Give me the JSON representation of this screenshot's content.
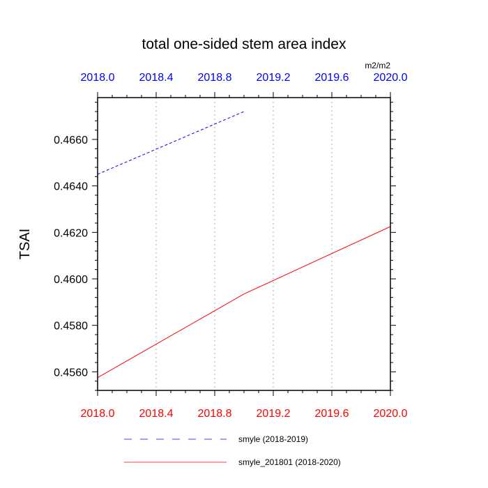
{
  "chart_data": {
    "type": "line",
    "title": "total one-sided stem area index",
    "units": "m2/m2",
    "ylabel": "TSAI",
    "xlabel": "",
    "xlim": [
      2018.0,
      2020.0
    ],
    "ylim": [
      0.4552,
      0.4678
    ],
    "x_ticks": [
      2018.0,
      2018.4,
      2018.8,
      2019.2,
      2019.6,
      2020.0
    ],
    "x_tick_labels": [
      "2018.0",
      "2018.4",
      "2018.8",
      "2019.2",
      "2019.6",
      "2020.0"
    ],
    "y_ticks": [
      0.456,
      0.458,
      0.46,
      0.462,
      0.464,
      0.466
    ],
    "y_tick_labels": [
      "0.4560",
      "0.4580",
      "0.4600",
      "0.4620",
      "0.4640",
      "0.4660"
    ],
    "top_axis_color": "#0000ff",
    "bottom_axis_color": "#ff0000",
    "grid": {
      "x": true,
      "y": false,
      "style": "dotted",
      "color": "#c8c8c8"
    },
    "legend_position": "bottom",
    "series": [
      {
        "name": "smyle (2018-2019)",
        "color": "#0000ff",
        "dash": "dashed",
        "x": [
          2018.0,
          2019.0
        ],
        "y": [
          0.4645,
          0.4672
        ]
      },
      {
        "name": "smyle_201801 (2018-2020)",
        "color": "#ff0000",
        "dash": "solid",
        "x": [
          2018.0,
          2019.0,
          2020.0
        ],
        "y": [
          0.45575,
          0.45935,
          0.46225
        ]
      }
    ]
  }
}
